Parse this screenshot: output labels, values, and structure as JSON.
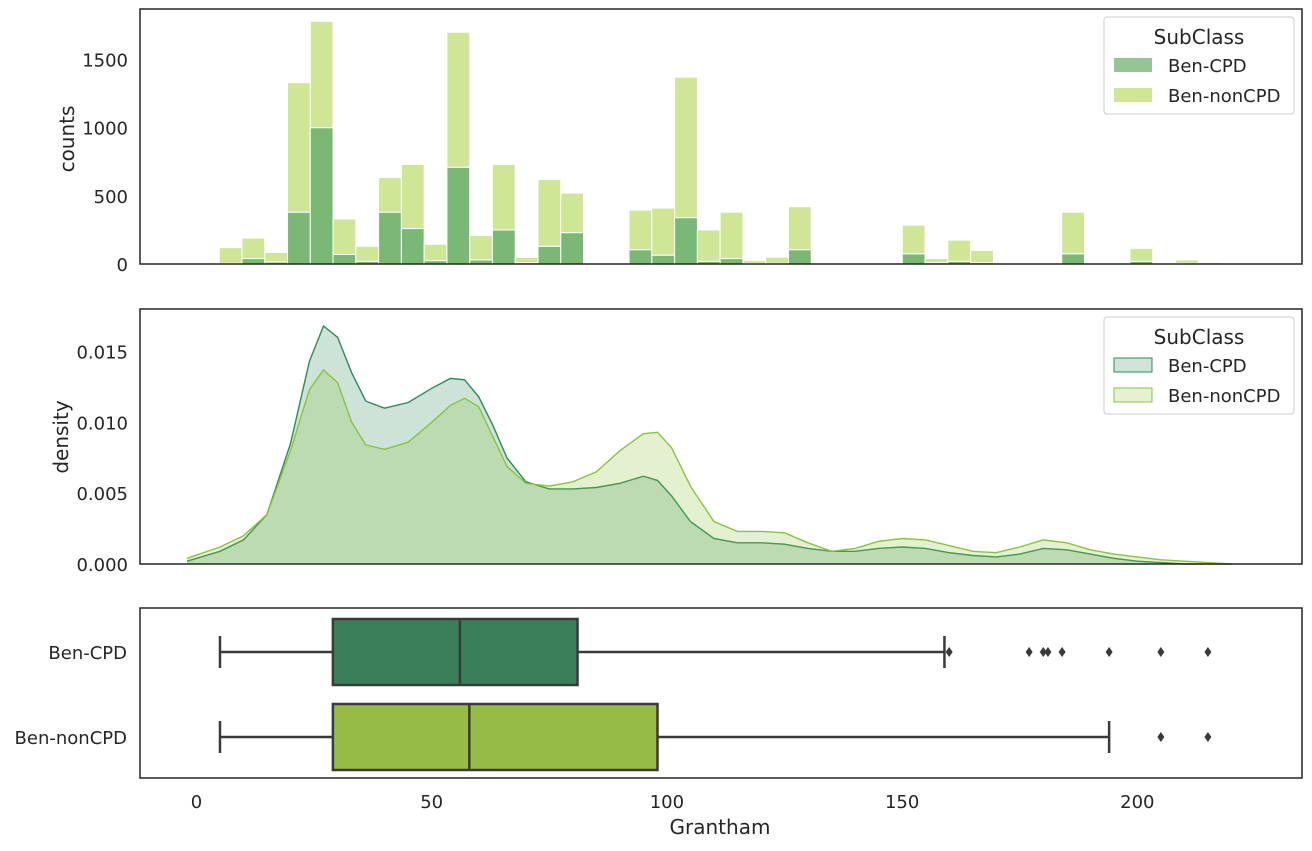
{
  "chart_data": [
    {
      "type": "bar",
      "stacked": true,
      "ylabel": "counts",
      "xlim": [
        -12,
        235
      ],
      "ylim": [
        0,
        1870
      ],
      "yticks": [
        0,
        500,
        1000,
        1500
      ],
      "bin_width": 4.84,
      "bin_start": 4.84,
      "legend": {
        "title": "SubClass",
        "position": "top-right",
        "entries": [
          "Ben-CPD",
          "Ben-nonCPD"
        ]
      },
      "series": [
        {
          "name": "Ben-CPD",
          "color": "#7bb876",
          "bins": [
            [
              4.84,
              5
            ],
            [
              9.68,
              40
            ],
            [
              14.52,
              15
            ],
            [
              19.36,
              380
            ],
            [
              24.2,
              1000
            ],
            [
              29.04,
              70
            ],
            [
              33.88,
              20
            ],
            [
              38.72,
              380
            ],
            [
              43.56,
              260
            ],
            [
              48.4,
              25
            ],
            [
              53.24,
              710
            ],
            [
              58.08,
              30
            ],
            [
              62.92,
              250
            ],
            [
              67.76,
              10
            ],
            [
              72.6,
              130
            ],
            [
              77.44,
              230
            ],
            [
              82.28,
              0
            ],
            [
              87.12,
              0
            ],
            [
              91.96,
              105
            ],
            [
              96.8,
              65
            ],
            [
              101.64,
              340
            ],
            [
              106.48,
              20
            ],
            [
              111.32,
              40
            ],
            [
              116.16,
              5
            ],
            [
              121.0,
              5
            ],
            [
              125.84,
              105
            ],
            [
              150.04,
              75
            ],
            [
              154.88,
              10
            ],
            [
              159.72,
              20
            ],
            [
              164.56,
              10
            ],
            [
              183.92,
              75
            ],
            [
              198.44,
              20
            ],
            [
              203.28,
              0
            ],
            [
              208.12,
              5
            ],
            [
              212.96,
              0
            ]
          ]
        },
        {
          "name": "Ben-nonCPD",
          "color": "#cfe697",
          "bins": [
            [
              4.84,
              115
            ],
            [
              9.68,
              150
            ],
            [
              14.52,
              70
            ],
            [
              19.36,
              950
            ],
            [
              24.2,
              780
            ],
            [
              29.04,
              260
            ],
            [
              33.88,
              110
            ],
            [
              38.72,
              255
            ],
            [
              43.56,
              470
            ],
            [
              48.4,
              120
            ],
            [
              53.24,
              990
            ],
            [
              58.08,
              180
            ],
            [
              62.92,
              480
            ],
            [
              67.76,
              40
            ],
            [
              72.6,
              490
            ],
            [
              77.44,
              290
            ],
            [
              82.28,
              0
            ],
            [
              87.12,
              0
            ],
            [
              91.96,
              290
            ],
            [
              96.8,
              345
            ],
            [
              101.64,
              1030
            ],
            [
              106.48,
              230
            ],
            [
              111.32,
              340
            ],
            [
              116.16,
              20
            ],
            [
              121.0,
              45
            ],
            [
              125.84,
              315
            ],
            [
              150.04,
              210
            ],
            [
              154.88,
              30
            ],
            [
              159.72,
              155
            ],
            [
              164.56,
              90
            ],
            [
              183.92,
              305
            ],
            [
              198.44,
              95
            ],
            [
              203.28,
              0
            ],
            [
              208.12,
              25
            ],
            [
              212.96,
              10
            ]
          ]
        }
      ]
    },
    {
      "type": "area",
      "ylabel": "density",
      "xlim": [
        -12,
        235
      ],
      "ylim": [
        0,
        0.018
      ],
      "yticks": [
        0.0,
        0.005,
        0.01,
        0.015
      ],
      "ytick_labels": [
        "0.000",
        "0.005",
        "0.010",
        "0.015"
      ],
      "legend": {
        "title": "SubClass",
        "position": "top-right",
        "entries": [
          "Ben-CPD",
          "Ben-nonCPD"
        ]
      },
      "series": [
        {
          "name": "Ben-CPD",
          "color": "#2e8b57",
          "x": [
            -2,
            5,
            10,
            15,
            20,
            24,
            27,
            30,
            33,
            36,
            40,
            45,
            50,
            54,
            57,
            60,
            63,
            66,
            70,
            75,
            80,
            85,
            90,
            95,
            98,
            101,
            105,
            110,
            115,
            120,
            125,
            130,
            135,
            140,
            145,
            150,
            155,
            160,
            165,
            170,
            175,
            180,
            185,
            190,
            195,
            200,
            205,
            210,
            215,
            220
          ],
          "y": [
            0.0002,
            0.0009,
            0.0017,
            0.0035,
            0.0085,
            0.0143,
            0.0168,
            0.016,
            0.0135,
            0.0115,
            0.011,
            0.0114,
            0.0124,
            0.0131,
            0.013,
            0.0118,
            0.0098,
            0.0075,
            0.0058,
            0.0053,
            0.0053,
            0.0054,
            0.0057,
            0.0062,
            0.0059,
            0.0048,
            0.003,
            0.0018,
            0.0015,
            0.0015,
            0.0014,
            0.0011,
            0.0009,
            0.0009,
            0.0011,
            0.0012,
            0.0011,
            0.0008,
            0.0006,
            0.0005,
            0.0007,
            0.0011,
            0.001,
            0.0007,
            0.0004,
            0.0002,
            0.0001,
            0.0,
            0.0,
            0.0
          ]
        },
        {
          "name": "Ben-nonCPD",
          "color": "#8ac43f",
          "x": [
            -2,
            5,
            10,
            15,
            20,
            24,
            27,
            30,
            33,
            36,
            40,
            45,
            50,
            54,
            57,
            60,
            63,
            66,
            70,
            75,
            80,
            85,
            90,
            95,
            98,
            101,
            105,
            110,
            115,
            120,
            125,
            130,
            135,
            140,
            145,
            150,
            155,
            160,
            165,
            170,
            175,
            180,
            185,
            190,
            195,
            200,
            205,
            210,
            215,
            220
          ],
          "y": [
            0.0004,
            0.0012,
            0.002,
            0.0035,
            0.008,
            0.0123,
            0.0137,
            0.0128,
            0.01,
            0.0084,
            0.0081,
            0.0086,
            0.01,
            0.0112,
            0.0117,
            0.0111,
            0.009,
            0.0069,
            0.0057,
            0.0055,
            0.0058,
            0.0065,
            0.008,
            0.0092,
            0.0093,
            0.0082,
            0.0055,
            0.003,
            0.0023,
            0.0023,
            0.0022,
            0.0015,
            0.0009,
            0.0011,
            0.0016,
            0.0018,
            0.0017,
            0.0013,
            0.0009,
            0.0008,
            0.0012,
            0.0017,
            0.0015,
            0.001,
            0.0007,
            0.0005,
            0.0003,
            0.0002,
            0.0001,
            0.0
          ]
        }
      ]
    },
    {
      "type": "box",
      "xlabel": "Grantham",
      "xlim": [
        -12,
        235
      ],
      "xticks": [
        0,
        50,
        100,
        150,
        200
      ],
      "categories": [
        "Ben-CPD",
        "Ben-nonCPD"
      ],
      "boxes": [
        {
          "name": "Ben-CPD",
          "color": "#3a7f59",
          "whisker_low": 5,
          "q1": 29,
          "median": 56,
          "q3": 81,
          "whisker_high": 159,
          "outliers": [
            160,
            177,
            180,
            181,
            184,
            194,
            205,
            215
          ]
        },
        {
          "name": "Ben-nonCPD",
          "color": "#97bb47",
          "whisker_low": 5,
          "q1": 29,
          "median": 58,
          "q3": 98,
          "whisker_high": 194,
          "outliers": [
            205,
            215
          ]
        }
      ]
    }
  ]
}
